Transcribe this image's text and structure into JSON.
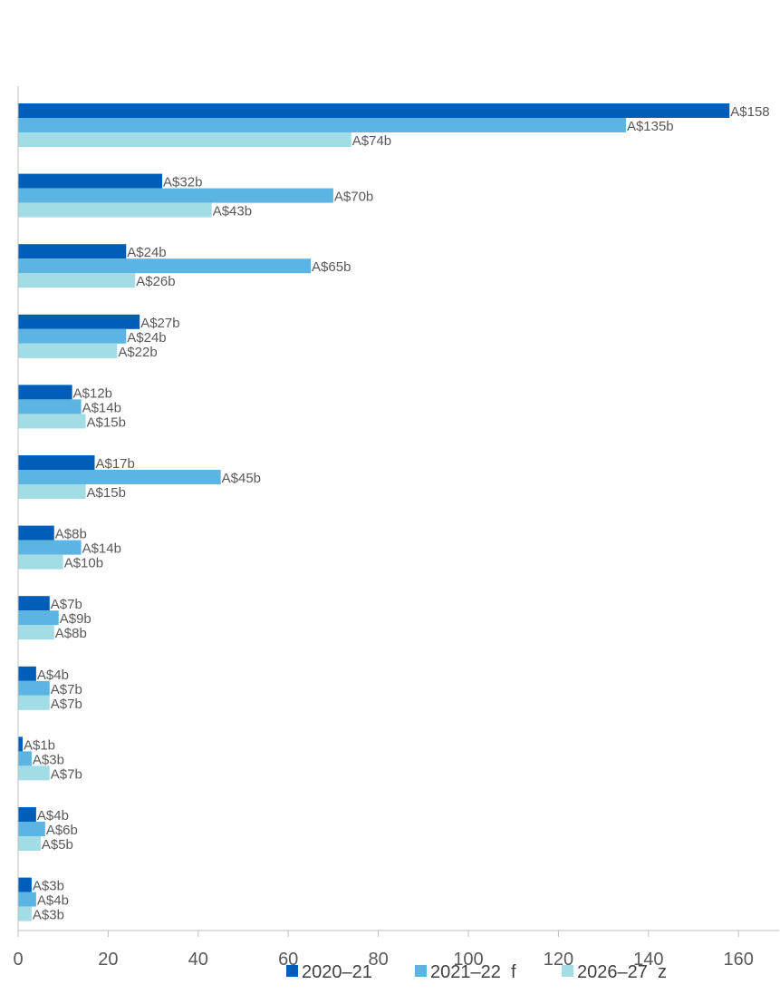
{
  "chart_data": {
    "type": "bar",
    "orientation": "horizontal",
    "title": "",
    "xlabel": "",
    "ylabel": "",
    "xlim": [
      0,
      170
    ],
    "xticks": [
      0,
      20,
      40,
      60,
      80,
      100,
      120,
      140,
      160
    ],
    "grid": false,
    "legend_position": "bottom",
    "series": [
      {
        "name": "2020–21",
        "color": "#005EB8",
        "values": [
          158,
          32,
          24,
          27,
          12,
          17,
          8,
          7,
          4,
          1,
          4,
          3
        ],
        "labels": [
          "A$158",
          "A$32b",
          "A$24b",
          "A$27b",
          "A$12b",
          "A$17b",
          "A$8b",
          "A$7b",
          "A$4b",
          "A$1b",
          "A$4b",
          "A$3b"
        ]
      },
      {
        "name": "2021–22  f",
        "color": "#5BB4E1",
        "values": [
          135,
          70,
          65,
          24,
          14,
          45,
          14,
          9,
          7,
          3,
          6,
          4
        ],
        "labels": [
          "A$135b",
          "A$70b",
          "A$65b",
          "A$24b",
          "A$14b",
          "A$45b",
          "A$14b",
          "A$9b",
          "A$7b",
          "A$3b",
          "A$6b",
          "A$4b"
        ]
      },
      {
        "name": "2026–27  z",
        "color": "#A2DCE4",
        "values": [
          74,
          43,
          26,
          22,
          15,
          15,
          10,
          8,
          7,
          7,
          5,
          3
        ],
        "labels": [
          "A$74b",
          "A$43b",
          "A$26b",
          "A$22b",
          "A$15b",
          "A$15b",
          "A$10b",
          "A$8b",
          "A$7b",
          "A$7b",
          "A$5b",
          "A$3b"
        ]
      }
    ]
  },
  "colors": {
    "axis": "#BFBFBF",
    "label_text": "#595959",
    "legend_text": "#404040"
  }
}
